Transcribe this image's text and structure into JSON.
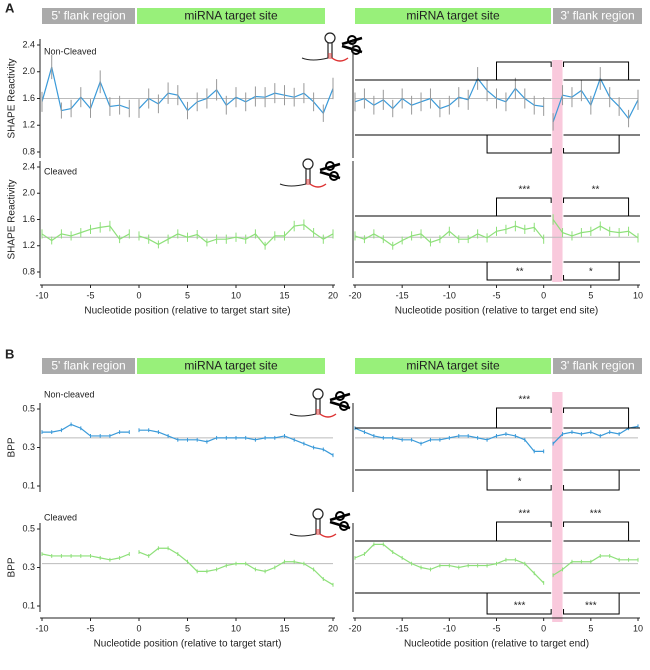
{
  "figure_labels": [
    "A",
    "B"
  ],
  "regions": {
    "flank5": "5' flank region",
    "target": "miRNA target site",
    "flank3": "3' flank region"
  },
  "chart_data": [
    {
      "type": "line",
      "label": "Non-Cleaved",
      "ylabel": "SHAPE Reactivity",
      "x": [
        -10,
        -9,
        -8,
        -7,
        -6,
        -5,
        -4,
        -3,
        -2,
        -1,
        0,
        1,
        2,
        3,
        4,
        5,
        6,
        7,
        8,
        9,
        10,
        11,
        12,
        13,
        14,
        15,
        16,
        17,
        18,
        19,
        20
      ],
      "series": [
        {
          "color": "#3a9ad9",
          "error_color": "#999999",
          "values": [
            1.55,
            2.07,
            1.42,
            1.45,
            1.62,
            1.45,
            1.85,
            1.48,
            1.5,
            1.45,
            1.45,
            1.6,
            1.52,
            1.68,
            1.65,
            1.42,
            1.55,
            1.6,
            1.73,
            1.5,
            1.62,
            1.55,
            1.63,
            1.62,
            1.68,
            1.65,
            1.62,
            1.68,
            1.55,
            1.38,
            1.75
          ],
          "errors": [
            0.15,
            0.18,
            0.12,
            0.13,
            0.15,
            0.14,
            0.17,
            0.14,
            0.14,
            0.13,
            0.14,
            0.15,
            0.14,
            0.16,
            0.15,
            0.13,
            0.14,
            0.15,
            0.16,
            0.14,
            0.15,
            0.14,
            0.15,
            0.15,
            0.15,
            0.15,
            0.14,
            0.15,
            0.14,
            0.13,
            0.16
          ]
        }
      ],
      "reference": 1.6,
      "xlim": [
        -10,
        20
      ],
      "ylim": [
        0.8,
        2.4
      ],
      "yticks": [
        0.8,
        1.2,
        1.6,
        {
          "value": 2,
          "label": "2.0"
        },
        2.4
      ]
    },
    {
      "type": "line",
      "x": [
        -20,
        -19,
        -18,
        -17,
        -16,
        -15,
        -14,
        -13,
        -12,
        -11,
        -10,
        -9,
        -8,
        -7,
        -6,
        -5,
        -4,
        -3,
        -2,
        -1,
        0,
        1,
        2,
        3,
        4,
        5,
        6,
        7,
        8,
        9,
        10
      ],
      "series": [
        {
          "color": "#3a9ad9",
          "error_color": "#999999",
          "values": [
            1.55,
            1.6,
            1.5,
            1.58,
            1.45,
            1.6,
            1.5,
            1.55,
            1.6,
            1.45,
            1.5,
            1.62,
            1.58,
            1.9,
            1.72,
            1.6,
            1.55,
            1.75,
            1.6,
            1.5,
            1.48,
            1.25,
            1.65,
            1.62,
            1.72,
            1.5,
            1.9,
            1.62,
            1.48,
            1.3,
            1.58
          ],
          "errors": [
            0.14,
            0.15,
            0.14,
            0.15,
            0.13,
            0.15,
            0.14,
            0.14,
            0.15,
            0.13,
            0.14,
            0.15,
            0.15,
            0.17,
            0.16,
            0.15,
            0.14,
            0.16,
            0.15,
            0.14,
            0.14,
            0.13,
            0.15,
            0.15,
            0.16,
            0.14,
            0.17,
            0.15,
            0.14,
            0.13,
            0.15
          ]
        }
      ],
      "reference": 1.6,
      "xlim": [
        -20,
        10
      ],
      "ylim": [
        0.8,
        2.4
      ],
      "significance": {
        "above": [
          null,
          null
        ],
        "below": [
          null,
          null
        ]
      }
    },
    {
      "type": "line",
      "label": "Cleaved",
      "ylabel": "SHAPE Reactivity",
      "xlabel": "Nucleotide position (relative to target start site)",
      "x": [
        -10,
        -9,
        -8,
        -7,
        -6,
        -5,
        -4,
        -3,
        -2,
        -1,
        0,
        1,
        2,
        3,
        4,
        5,
        6,
        7,
        8,
        9,
        10,
        11,
        12,
        13,
        14,
        15,
        16,
        17,
        18,
        19,
        20
      ],
      "series": [
        {
          "color": "#8ee07a",
          "error_color": "#8ee07a",
          "values": [
            1.38,
            1.28,
            1.38,
            1.35,
            1.4,
            1.45,
            1.48,
            1.5,
            1.3,
            1.38,
            1.35,
            1.3,
            1.22,
            1.3,
            1.38,
            1.33,
            1.37,
            1.25,
            1.3,
            1.3,
            1.33,
            1.3,
            1.38,
            1.2,
            1.35,
            1.35,
            1.5,
            1.52,
            1.4,
            1.3,
            1.38
          ],
          "errors": [
            0.07,
            0.06,
            0.07,
            0.07,
            0.07,
            0.07,
            0.08,
            0.08,
            0.06,
            0.07,
            0.07,
            0.07,
            0.06,
            0.07,
            0.07,
            0.07,
            0.07,
            0.06,
            0.07,
            0.07,
            0.07,
            0.07,
            0.07,
            0.06,
            0.07,
            0.07,
            0.08,
            0.08,
            0.07,
            0.07,
            0.07
          ]
        }
      ],
      "reference": 1.33,
      "xlim": [
        -10,
        20
      ],
      "ylim": [
        0.8,
        2.4
      ],
      "yticks": [
        0.8,
        1.2,
        1.6,
        {
          "value": 2,
          "label": "2.0"
        },
        2.4
      ],
      "xticks": [
        -10,
        -5,
        0,
        5,
        10,
        15,
        20
      ]
    },
    {
      "type": "line",
      "xlabel": "Nucleotide position (relative to target end site)",
      "x": [
        -20,
        -19,
        -18,
        -17,
        -16,
        -15,
        -14,
        -13,
        -12,
        -11,
        -10,
        -9,
        -8,
        -7,
        -6,
        -5,
        -4,
        -3,
        -2,
        -1,
        0,
        1,
        2,
        3,
        4,
        5,
        6,
        7,
        8,
        9,
        10
      ],
      "series": [
        {
          "color": "#8ee07a",
          "error_color": "#8ee07a",
          "values": [
            1.35,
            1.3,
            1.38,
            1.3,
            1.2,
            1.28,
            1.35,
            1.38,
            1.25,
            1.3,
            1.42,
            1.3,
            1.3,
            1.38,
            1.32,
            1.42,
            1.45,
            1.5,
            1.45,
            1.48,
            1.3,
            1.6,
            1.4,
            1.35,
            1.4,
            1.42,
            1.5,
            1.42,
            1.4,
            1.42,
            1.32
          ],
          "errors": [
            0.07,
            0.06,
            0.07,
            0.06,
            0.06,
            0.06,
            0.07,
            0.07,
            0.06,
            0.06,
            0.07,
            0.06,
            0.06,
            0.07,
            0.07,
            0.07,
            0.07,
            0.08,
            0.07,
            0.07,
            0.07,
            0.08,
            0.07,
            0.07,
            0.07,
            0.07,
            0.07,
            0.07,
            0.07,
            0.07,
            0.07
          ]
        }
      ],
      "reference": 1.33,
      "xlim": [
        -20,
        10
      ],
      "ylim": [
        0.8,
        2.4
      ],
      "xticks": [
        -20,
        -15,
        -10,
        -5,
        0,
        5,
        10
      ],
      "significance": {
        "above": [
          "***",
          "**"
        ],
        "below": [
          "**",
          "*"
        ]
      }
    },
    {
      "type": "line",
      "label": "Non-cleaved",
      "ylabel": "BPP",
      "x": [
        -10,
        -9,
        -8,
        -7,
        -6,
        -5,
        -4,
        -3,
        -2,
        -1,
        0,
        1,
        2,
        3,
        4,
        5,
        6,
        7,
        8,
        9,
        10,
        11,
        12,
        13,
        14,
        15,
        16,
        17,
        18,
        19,
        20
      ],
      "series": [
        {
          "color": "#3a9ad9",
          "error_color": "#3a9ad9",
          "values": [
            0.38,
            0.38,
            0.39,
            0.42,
            0.4,
            0.36,
            0.36,
            0.36,
            0.38,
            0.38,
            0.39,
            0.39,
            0.38,
            0.36,
            0.34,
            0.34,
            0.34,
            0.33,
            0.35,
            0.35,
            0.35,
            0.35,
            0.34,
            0.35,
            0.35,
            0.36,
            0.34,
            0.32,
            0.3,
            0.29,
            0.26
          ],
          "errors": [
            0.01,
            0.01,
            0.01,
            0.01,
            0.01,
            0.01,
            0.01,
            0.01,
            0.01,
            0.01,
            0.01,
            0.01,
            0.01,
            0.01,
            0.01,
            0.01,
            0.01,
            0.01,
            0.01,
            0.01,
            0.01,
            0.01,
            0.01,
            0.01,
            0.01,
            0.01,
            0.01,
            0.01,
            0.01,
            0.01,
            0.01
          ]
        }
      ],
      "reference": 0.35,
      "xlim": [
        -10,
        20
      ],
      "ylim": [
        0.1,
        0.5
      ],
      "yticks": [
        0.1,
        0.3,
        0.5
      ]
    },
    {
      "type": "line",
      "x": [
        -20,
        -19,
        -18,
        -17,
        -16,
        -15,
        -14,
        -13,
        -12,
        -11,
        -10,
        -9,
        -8,
        -7,
        -6,
        -5,
        -4,
        -3,
        -2,
        -1,
        0,
        1,
        2,
        3,
        4,
        5,
        6,
        7,
        8,
        9,
        10
      ],
      "series": [
        {
          "color": "#3a9ad9",
          "error_color": "#3a9ad9",
          "values": [
            0.4,
            0.38,
            0.36,
            0.35,
            0.35,
            0.34,
            0.34,
            0.32,
            0.34,
            0.34,
            0.35,
            0.36,
            0.36,
            0.35,
            0.34,
            0.36,
            0.37,
            0.36,
            0.34,
            0.28,
            0.28,
            0.32,
            0.37,
            0.38,
            0.37,
            0.38,
            0.36,
            0.38,
            0.37,
            0.4,
            0.41
          ],
          "errors": [
            0.01,
            0.01,
            0.01,
            0.01,
            0.01,
            0.01,
            0.01,
            0.01,
            0.01,
            0.01,
            0.01,
            0.01,
            0.01,
            0.01,
            0.01,
            0.01,
            0.01,
            0.01,
            0.01,
            0.01,
            0.01,
            0.01,
            0.01,
            0.01,
            0.01,
            0.01,
            0.01,
            0.01,
            0.01,
            0.01,
            0.01
          ]
        }
      ],
      "reference": 0.35,
      "xlim": [
        -20,
        10
      ],
      "ylim": [
        0.1,
        0.5
      ],
      "significance": {
        "above": [
          "***",
          null
        ],
        "below": [
          "*",
          null
        ]
      }
    },
    {
      "type": "line",
      "label": "Cleaved",
      "ylabel": "BPP",
      "xlabel": "Nucleotide position (relative to target start)",
      "x": [
        -10,
        -9,
        -8,
        -7,
        -6,
        -5,
        -4,
        -3,
        -2,
        -1,
        0,
        1,
        2,
        3,
        4,
        5,
        6,
        7,
        8,
        9,
        10,
        11,
        12,
        13,
        14,
        15,
        16,
        17,
        18,
        19,
        20
      ],
      "series": [
        {
          "color": "#8ee07a",
          "error_color": "#8ee07a",
          "values": [
            0.37,
            0.36,
            0.36,
            0.36,
            0.36,
            0.36,
            0.35,
            0.34,
            0.35,
            0.37,
            0.38,
            0.36,
            0.4,
            0.4,
            0.37,
            0.33,
            0.28,
            0.28,
            0.29,
            0.31,
            0.32,
            0.32,
            0.29,
            0.28,
            0.3,
            0.33,
            0.33,
            0.32,
            0.29,
            0.24,
            0.21
          ],
          "errors": [
            0.01,
            0.01,
            0.01,
            0.01,
            0.01,
            0.01,
            0.01,
            0.01,
            0.01,
            0.01,
            0.01,
            0.01,
            0.01,
            0.01,
            0.01,
            0.01,
            0.01,
            0.01,
            0.01,
            0.01,
            0.01,
            0.01,
            0.01,
            0.01,
            0.01,
            0.01,
            0.01,
            0.01,
            0.01,
            0.01,
            0.01
          ]
        }
      ],
      "reference": 0.32,
      "xlim": [
        -10,
        20
      ],
      "ylim": [
        0.1,
        0.5
      ],
      "yticks": [
        0.1,
        0.3,
        0.5
      ],
      "xticks": [
        -10,
        -5,
        0,
        5,
        10,
        15,
        20
      ]
    },
    {
      "type": "line",
      "xlabel": "Nucleotide position (relative to target end)",
      "x": [
        -20,
        -19,
        -18,
        -17,
        -16,
        -15,
        -14,
        -13,
        -12,
        -11,
        -10,
        -9,
        -8,
        -7,
        -6,
        -5,
        -4,
        -3,
        -2,
        -1,
        0,
        1,
        2,
        3,
        4,
        5,
        6,
        7,
        8,
        9,
        10
      ],
      "series": [
        {
          "color": "#8ee07a",
          "error_color": "#8ee07a",
          "values": [
            0.35,
            0.37,
            0.42,
            0.42,
            0.38,
            0.35,
            0.32,
            0.3,
            0.29,
            0.31,
            0.31,
            0.3,
            0.31,
            0.31,
            0.31,
            0.32,
            0.34,
            0.34,
            0.32,
            0.27,
            0.22,
            0.26,
            0.29,
            0.33,
            0.33,
            0.33,
            0.36,
            0.36,
            0.34,
            0.34,
            0.34
          ],
          "errors": [
            0.01,
            0.01,
            0.01,
            0.01,
            0.01,
            0.01,
            0.01,
            0.01,
            0.01,
            0.01,
            0.01,
            0.01,
            0.01,
            0.01,
            0.01,
            0.01,
            0.01,
            0.01,
            0.01,
            0.01,
            0.01,
            0.01,
            0.01,
            0.01,
            0.01,
            0.01,
            0.01,
            0.01,
            0.01,
            0.01,
            0.01
          ]
        }
      ],
      "reference": 0.32,
      "xlim": [
        -20,
        10
      ],
      "ylim": [
        0.1,
        0.5
      ],
      "xticks": [
        -20,
        -15,
        -10,
        -5,
        0,
        5,
        10
      ],
      "significance": {
        "above": [
          "***",
          "***"
        ],
        "below": [
          "***",
          "***"
        ]
      }
    }
  ]
}
